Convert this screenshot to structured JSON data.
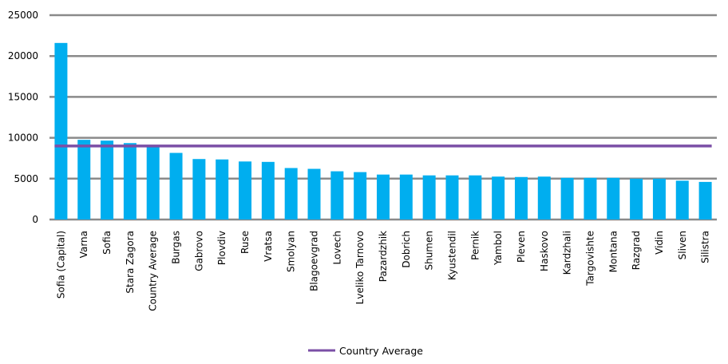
{
  "chart_data": {
    "type": "bar",
    "title": "",
    "xlabel": "",
    "ylabel": "",
    "ylim": [
      0,
      25000
    ],
    "yticks": [
      0,
      5000,
      10000,
      15000,
      20000,
      25000
    ],
    "grid": "horizontal",
    "legend_position": "bottom",
    "categories": [
      "Sofia (Capital)",
      "Varna",
      "Sofia",
      "Stara Zagora",
      "Country Average",
      "Burgas",
      "Gabrovo",
      "Plovdiv",
      "Ruse",
      "Vratsa",
      "Smolyan",
      "Blagoevgrad",
      "Lovech",
      "Lveliko Tarnovo",
      "Pazardzhik",
      "Dobrich",
      "Shumen",
      "Kyustendil",
      "Pernik",
      "Yambol",
      "Pleven",
      "Haskovo",
      "Kardzhali",
      "Targovishte",
      "Montana",
      "Razgrad",
      "Vidin",
      "Sliven",
      "Silistra"
    ],
    "series": [
      {
        "type": "bar",
        "values": [
          21600,
          9750,
          9650,
          9350,
          9050,
          8150,
          7400,
          7350,
          7100,
          7050,
          6300,
          6200,
          5900,
          5800,
          5500,
          5500,
          5400,
          5400,
          5400,
          5250,
          5200,
          5250,
          5100,
          5100,
          5100,
          5000,
          5000,
          4750,
          4600
        ],
        "color": "#00aeef"
      },
      {
        "name": "Country Average",
        "type": "line",
        "value": 9000,
        "color": "#7b4fa6"
      }
    ]
  }
}
